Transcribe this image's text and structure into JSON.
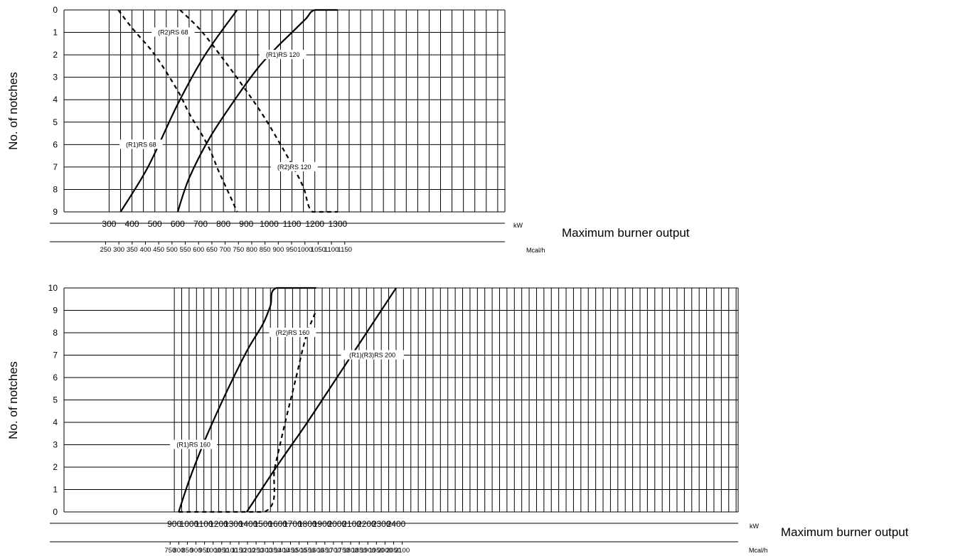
{
  "chart_data": [
    {
      "type": "line",
      "ylabel": "No. of notches",
      "xlabel": "Maximum burner output",
      "y_reversed": true,
      "ylim": [
        0,
        9
      ],
      "yticks": [
        0,
        1,
        2,
        3,
        4,
        5,
        6,
        7,
        8,
        9
      ],
      "x_primary": {
        "unit": "kW",
        "range": [
          300,
          1350
        ],
        "ticks": [
          300,
          400,
          500,
          600,
          700,
          800,
          900,
          1000,
          1100,
          1200,
          1300
        ]
      },
      "x_secondary": {
        "unit": "Mcal/h",
        "ticks": [
          250,
          300,
          350,
          400,
          450,
          500,
          550,
          600,
          650,
          700,
          750,
          800,
          850,
          900,
          950,
          1000,
          1050,
          1100,
          1150
        ]
      },
      "series": [
        {
          "name": "(R1)RS 68",
          "style": "solid",
          "x": [
            350,
            470,
            600,
            720,
            860
          ],
          "y": [
            9,
            7,
            4.2,
            2,
            0
          ]
        },
        {
          "name": "(R2)RS 68",
          "style": "dashed",
          "x": [
            340,
            400,
            500,
            600,
            650,
            730,
            780,
            825,
            860
          ],
          "y": [
            0,
            0.8,
            2,
            3.6,
            4.6,
            6,
            7.2,
            8.2,
            9
          ]
        },
        {
          "name": "(R1)RS 120",
          "style": "solid",
          "x": [
            600,
            650,
            740,
            850,
            950,
            1030,
            1100,
            1160,
            1200,
            1300
          ],
          "y": [
            9,
            7.5,
            5.7,
            4,
            2.6,
            1.7,
            1,
            0.4,
            0,
            0
          ]
        },
        {
          "name": "(R2)RS 120",
          "style": "dashed",
          "x": [
            610,
            700,
            800,
            900,
            980,
            1050,
            1100,
            1150,
            1190,
            1300
          ],
          "y": [
            0,
            0.9,
            2.2,
            3.6,
            4.8,
            6,
            6.9,
            7.9,
            9,
            9
          ]
        }
      ],
      "labels": [
        {
          "text": "(R2)RS 68",
          "x": 580,
          "y": 1
        },
        {
          "text": "(R1)RS 68",
          "x": 440,
          "y": 6
        },
        {
          "text": "(R1)RS 120",
          "x": 1060,
          "y": 2
        },
        {
          "text": "(R2)RS 120",
          "x": 1110,
          "y": 7
        }
      ]
    },
    {
      "type": "line",
      "ylabel": "No. of notches",
      "xlabel": "Maximum burner output",
      "ylim": [
        0,
        10
      ],
      "yticks": [
        0,
        1,
        2,
        3,
        4,
        5,
        6,
        7,
        8,
        9,
        10
      ],
      "x_primary": {
        "unit": "kW",
        "range": [
          875,
          2450
        ],
        "ticks": [
          900,
          1000,
          1100,
          1200,
          1300,
          1400,
          1500,
          1600,
          1700,
          1800,
          1900,
          2000,
          2100,
          2200,
          2300,
          2400
        ]
      },
      "x_secondary": {
        "unit": "Mcal/h",
        "ticks": [
          750,
          800,
          850,
          900,
          950,
          1000,
          1050,
          1100,
          1150,
          1200,
          1250,
          1300,
          1350,
          1400,
          1450,
          1500,
          1550,
          1600,
          1650,
          1700,
          1750,
          1800,
          1850,
          1900,
          1950,
          2000,
          2050,
          2100
        ]
      },
      "series": [
        {
          "name": "(R1)RS 160",
          "style": "solid",
          "x": [
            930,
            1000,
            1100,
            1200,
            1300,
            1400,
            1500,
            1550,
            1590,
            1860
          ],
          "y": [
            0,
            1.4,
            3.1,
            4.6,
            6,
            7.3,
            8.4,
            9.2,
            10,
            10
          ]
        },
        {
          "name": "(R2)RS 160",
          "style": "dashed",
          "x": [
            930,
            1510,
            1580,
            1650,
            1720,
            1790,
            1860
          ],
          "y": [
            0,
            0,
            2,
            4,
            5.9,
            7.8,
            9
          ]
        },
        {
          "name": "(R1)(R3)RS 200",
          "style": "solid",
          "x": [
            1390,
            1600,
            1800,
            2000,
            2200,
            2400
          ],
          "y": [
            0,
            2.1,
            4,
            6,
            8,
            10
          ]
        }
      ],
      "labels": [
        {
          "text": "(R1)RS 160",
          "x": 1030,
          "y": 3
        },
        {
          "text": "(R2)RS 160",
          "x": 1700,
          "y": 8
        },
        {
          "text": "(R1)(R3)RS 200",
          "x": 2240,
          "y": 7
        }
      ]
    }
  ]
}
